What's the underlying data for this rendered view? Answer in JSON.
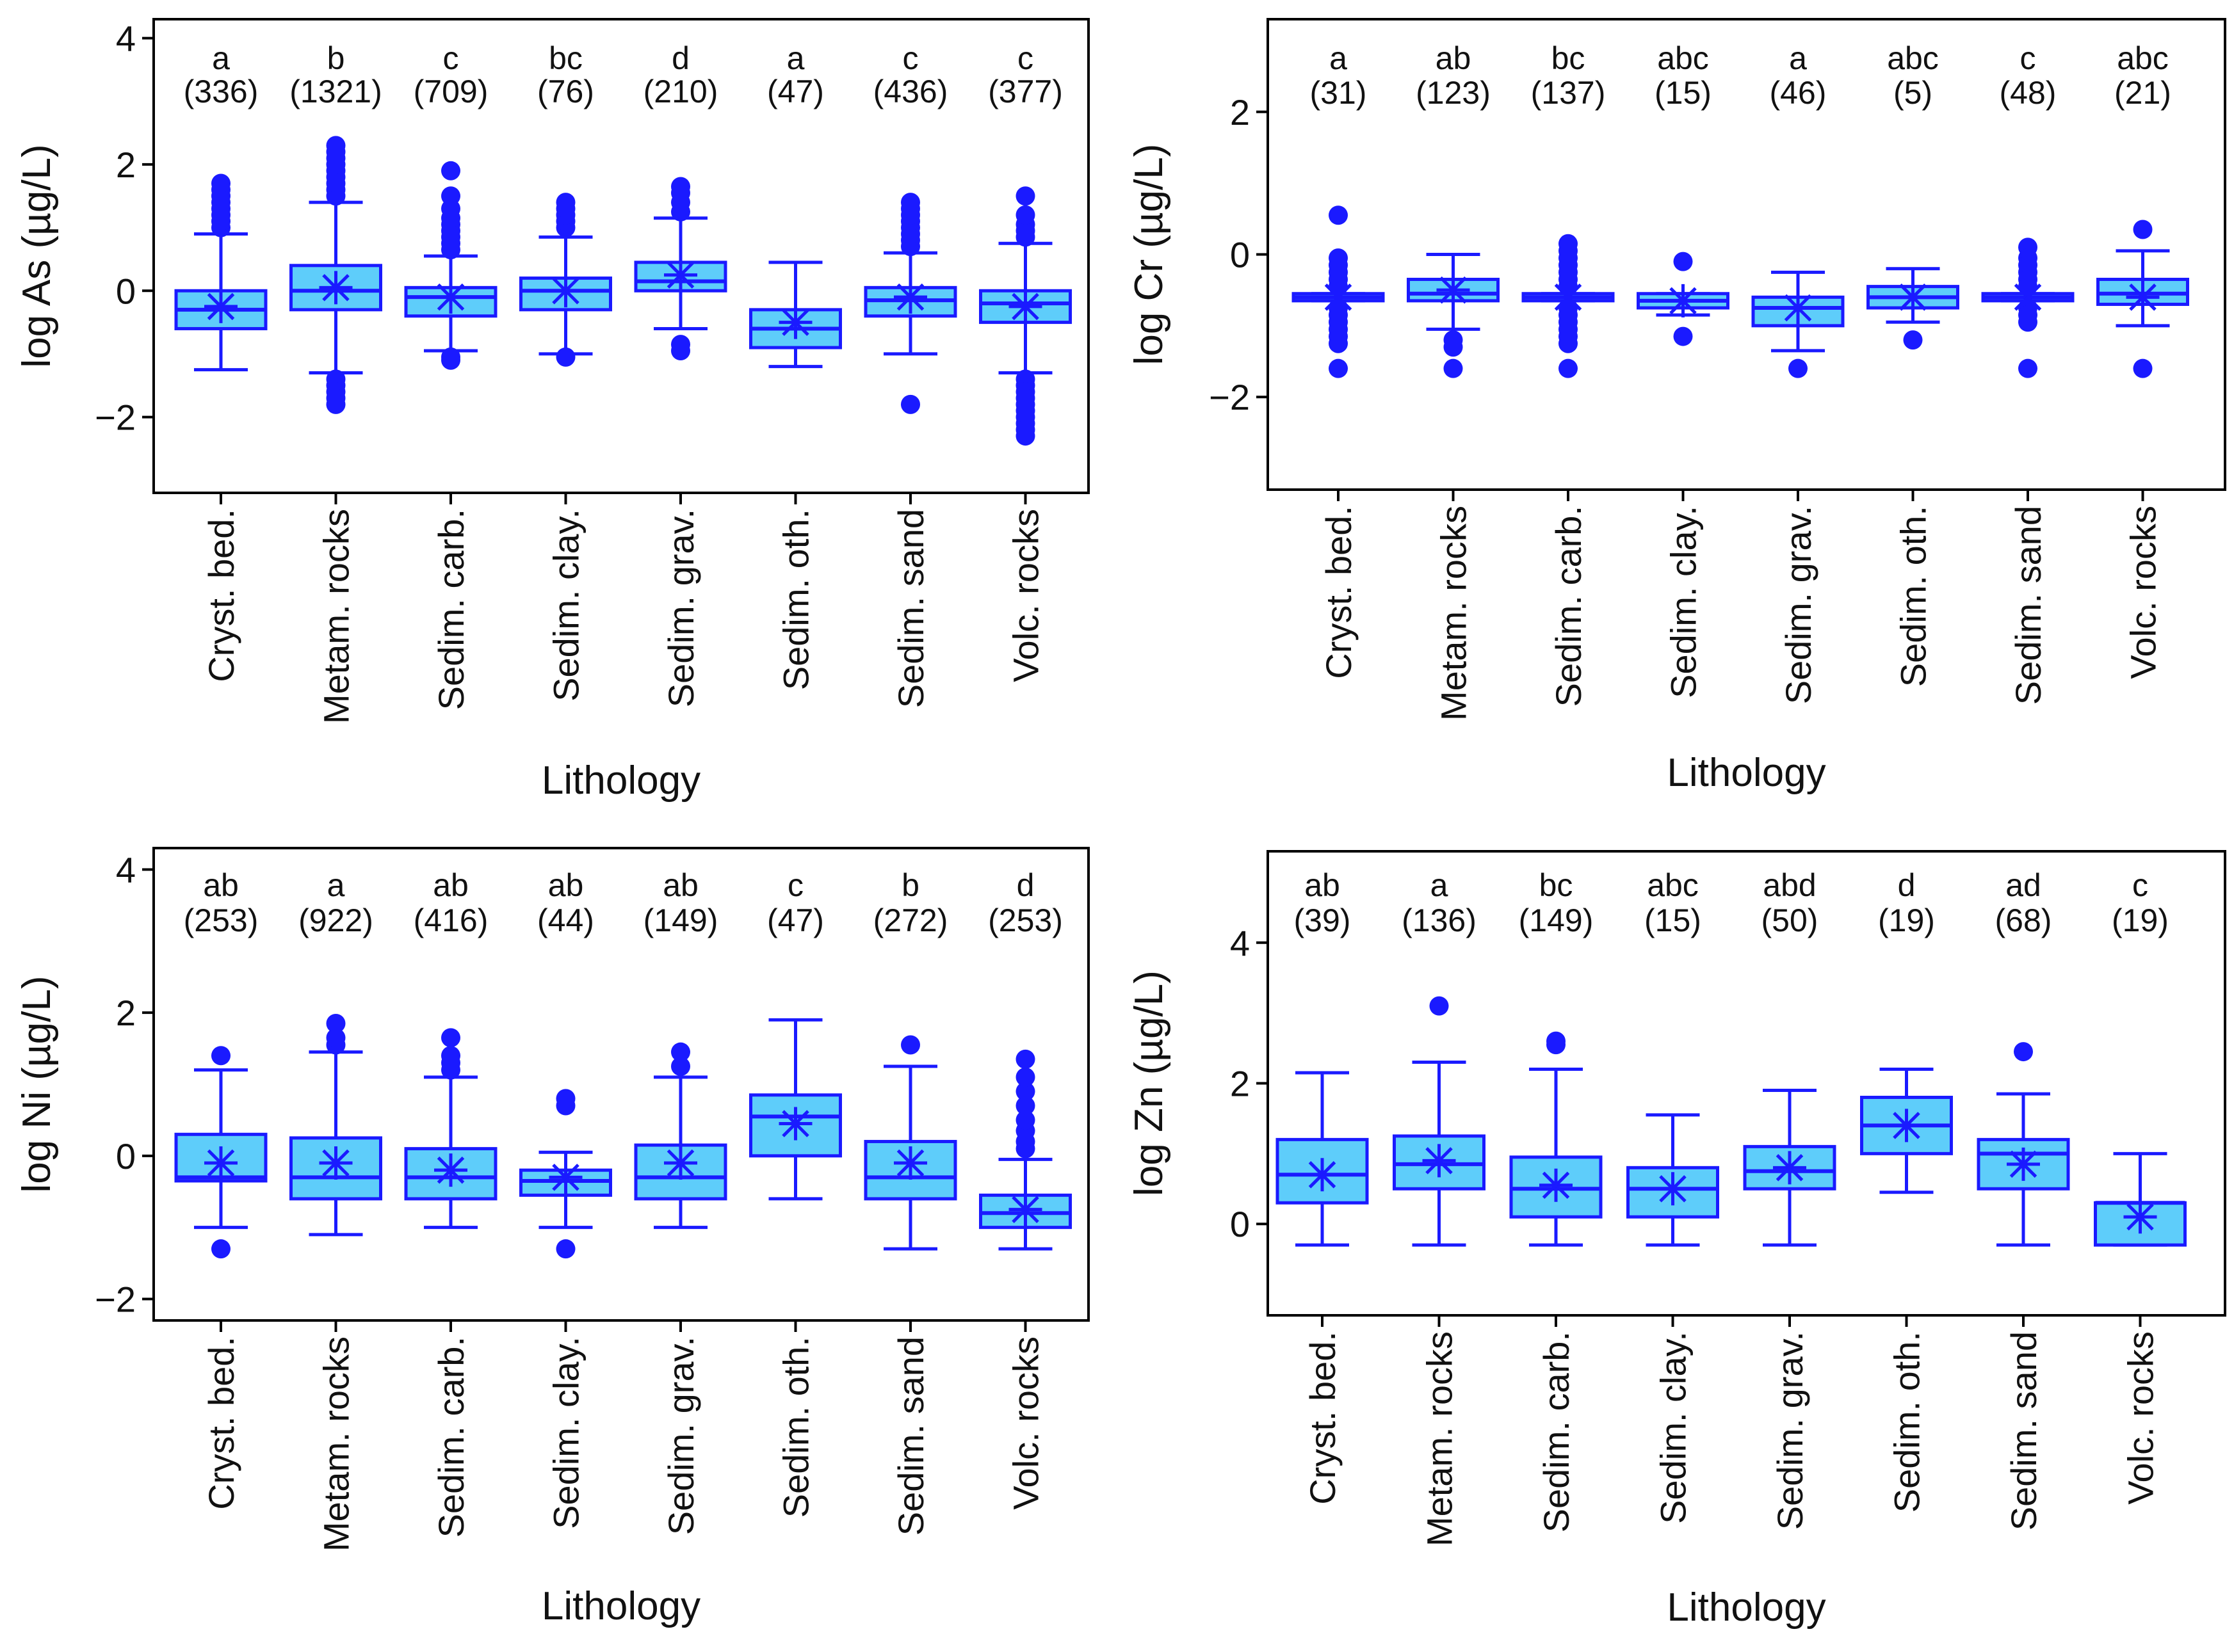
{
  "colors": {
    "stroke": "#1a1aff",
    "fill": "#5ecdfa",
    "axis": "#000000"
  },
  "chart_data": [
    {
      "type": "box",
      "element": "As",
      "ylabel_prefix": "log",
      "ylabel_element": "As",
      "ylabel_unit": "(µg/L)",
      "xlabel": "Lithology",
      "ylim": [
        -3.2,
        4.3
      ],
      "yticks": [
        4,
        2,
        0,
        -2
      ],
      "ytick_labels": [
        "4",
        "2",
        "0",
        "−2"
      ],
      "categories": [
        "Cryst. bed.",
        "Metam. rocks",
        "Sedim. carb.",
        "Sedim. clay.",
        "Sedim. grav.",
        "Sedim. oth.",
        "Sedim. sand",
        "Volc. rocks"
      ],
      "letters": [
        "a",
        "b",
        "c",
        "bc",
        "d",
        "a",
        "c",
        "c"
      ],
      "counts": [
        "(336)",
        "(1321)",
        "(709)",
        "(76)",
        "(210)",
        "(47)",
        "(436)",
        "(377)"
      ],
      "boxes": [
        {
          "wlo": -1.25,
          "q1": -0.6,
          "med": -0.3,
          "q3": 0.0,
          "whi": 0.9,
          "mean": -0.25,
          "outliers": [
            1.0,
            1.1,
            1.2,
            1.3,
            1.4,
            1.5,
            1.6,
            1.7
          ]
        },
        {
          "wlo": -1.3,
          "q1": -0.3,
          "med": 0.0,
          "q3": 0.4,
          "whi": 1.4,
          "mean": 0.05,
          "outliers": [
            1.5,
            1.6,
            1.7,
            1.8,
            1.9,
            2.0,
            2.1,
            2.2,
            2.3,
            -1.4,
            -1.5,
            -1.6,
            -1.7,
            -1.8
          ]
        },
        {
          "wlo": -0.95,
          "q1": -0.4,
          "med": -0.1,
          "q3": 0.05,
          "whi": 0.55,
          "mean": -0.1,
          "outliers": [
            0.65,
            0.75,
            0.85,
            0.95,
            1.05,
            1.15,
            1.3,
            1.5,
            1.9,
            -1.05,
            -1.1
          ]
        },
        {
          "wlo": -1.0,
          "q1": -0.3,
          "med": 0.0,
          "q3": 0.2,
          "whi": 0.85,
          "mean": 0.0,
          "outliers": [
            1.0,
            1.1,
            1.2,
            1.3,
            1.4,
            -1.05
          ]
        },
        {
          "wlo": -0.6,
          "q1": 0.0,
          "med": 0.15,
          "q3": 0.45,
          "whi": 1.15,
          "mean": 0.25,
          "outliers": [
            1.25,
            1.4,
            1.55,
            1.65,
            -0.85,
            -0.95
          ]
        },
        {
          "wlo": -1.2,
          "q1": -0.9,
          "med": -0.6,
          "q3": -0.3,
          "whi": 0.45,
          "mean": -0.5,
          "outliers": []
        },
        {
          "wlo": -1.0,
          "q1": -0.4,
          "med": -0.15,
          "q3": 0.05,
          "whi": 0.6,
          "mean": -0.1,
          "outliers": [
            0.7,
            0.8,
            0.9,
            1.0,
            1.1,
            1.2,
            1.3,
            1.4,
            -1.8
          ]
        },
        {
          "wlo": -1.3,
          "q1": -0.5,
          "med": -0.2,
          "q3": 0.0,
          "whi": 0.75,
          "mean": -0.25,
          "outliers": [
            0.85,
            0.95,
            1.05,
            1.2,
            1.5,
            -1.4,
            -1.5,
            -1.6,
            -1.7,
            -1.8,
            -1.9,
            -2.0,
            -2.1,
            -2.2,
            -2.3
          ]
        }
      ]
    },
    {
      "type": "box",
      "element": "Cr",
      "ylabel_prefix": "log",
      "ylabel_element": "Cr",
      "ylabel_unit": "(µg/L)",
      "xlabel": "Lithology",
      "ylim": [
        -3.3,
        3.3
      ],
      "yticks": [
        2,
        0,
        -2
      ],
      "ytick_labels": [
        "2",
        "0",
        "−2"
      ],
      "categories": [
        "Cryst. bed.",
        "Metam. rocks",
        "Sedim. carb.",
        "Sedim. clay.",
        "Sedim. grav.",
        "Sedim. oth.",
        "Sedim. sand",
        "Volc. rocks"
      ],
      "letters": [
        "a",
        "ab",
        "bc",
        "abc",
        "a",
        "abc",
        "c",
        "abc"
      ],
      "counts": [
        "(31)",
        "(123)",
        "(137)",
        "(15)",
        "(46)",
        "(5)",
        "(48)",
        "(21)"
      ],
      "boxes": [
        {
          "wlo": -0.65,
          "q1": -0.65,
          "med": -0.6,
          "q3": -0.55,
          "whi": -0.55,
          "mean": -0.6,
          "outliers": [
            0.55,
            -0.05,
            -0.15,
            -0.25,
            -0.35,
            -0.45,
            -0.75,
            -0.85,
            -0.95,
            -1.05,
            -1.15,
            -1.25,
            -1.6
          ]
        },
        {
          "wlo": -1.05,
          "q1": -0.65,
          "med": -0.55,
          "q3": -0.35,
          "whi": 0.0,
          "mean": -0.5,
          "outliers": [
            -1.2,
            -1.3,
            -1.6
          ]
        },
        {
          "wlo": -0.65,
          "q1": -0.65,
          "med": -0.6,
          "q3": -0.55,
          "whi": -0.55,
          "mean": -0.6,
          "outliers": [
            0.15,
            0.05,
            -0.05,
            -0.15,
            -0.25,
            -0.35,
            -0.45,
            -0.75,
            -0.85,
            -0.95,
            -1.05,
            -1.15,
            -1.25,
            -1.6
          ]
        },
        {
          "wlo": -0.85,
          "q1": -0.75,
          "med": -0.65,
          "q3": -0.55,
          "whi": -0.55,
          "mean": -0.65,
          "outliers": [
            -0.1,
            -1.15
          ]
        },
        {
          "wlo": -1.35,
          "q1": -1.0,
          "med": -0.75,
          "q3": -0.6,
          "whi": -0.25,
          "mean": -0.75,
          "outliers": [
            -1.6
          ]
        },
        {
          "wlo": -0.95,
          "q1": -0.75,
          "med": -0.6,
          "q3": -0.45,
          "whi": -0.2,
          "mean": -0.6,
          "outliers": [
            -1.2
          ]
        },
        {
          "wlo": -0.65,
          "q1": -0.65,
          "med": -0.6,
          "q3": -0.55,
          "whi": -0.55,
          "mean": -0.6,
          "outliers": [
            0.1,
            -0.05,
            -0.15,
            -0.25,
            -0.35,
            -0.45,
            -0.75,
            -0.85,
            -0.95,
            -1.6
          ]
        },
        {
          "wlo": -1.0,
          "q1": -0.7,
          "med": -0.55,
          "q3": -0.35,
          "whi": 0.05,
          "mean": -0.6,
          "outliers": [
            0.35,
            -1.6
          ]
        }
      ]
    },
    {
      "type": "box",
      "element": "Ni",
      "ylabel_prefix": "log",
      "ylabel_element": "Ni",
      "ylabel_unit": "(µg/L)",
      "xlabel": "Lithology",
      "ylim": [
        -2.3,
        4.3
      ],
      "yticks": [
        4,
        2,
        0,
        -2
      ],
      "ytick_labels": [
        "4",
        "2",
        "0",
        "−2"
      ],
      "categories": [
        "Cryst. bed.",
        "Metam. rocks",
        "Sedim. carb.",
        "Sedim. clay.",
        "Sedim. grav.",
        "Sedim. oth.",
        "Sedim. sand",
        "Volc. rocks"
      ],
      "letters": [
        "ab",
        "a",
        "ab",
        "ab",
        "ab",
        "c",
        "b",
        "d"
      ],
      "counts": [
        "(253)",
        "(922)",
        "(416)",
        "(44)",
        "(149)",
        "(47)",
        "(272)",
        "(253)"
      ],
      "boxes": [
        {
          "wlo": -1.0,
          "q1": -0.35,
          "med": -0.3,
          "q3": 0.3,
          "whi": 1.2,
          "mean": -0.1,
          "outliers": [
            1.4,
            -1.3
          ]
        },
        {
          "wlo": -1.1,
          "q1": -0.6,
          "med": -0.3,
          "q3": 0.25,
          "whi": 1.45,
          "mean": -0.1,
          "outliers": [
            1.55,
            1.65,
            1.85
          ]
        },
        {
          "wlo": -1.0,
          "q1": -0.6,
          "med": -0.3,
          "q3": 0.1,
          "whi": 1.1,
          "mean": -0.2,
          "outliers": [
            1.2,
            1.3,
            1.4,
            1.65
          ]
        },
        {
          "wlo": -1.0,
          "q1": -0.55,
          "med": -0.35,
          "q3": -0.2,
          "whi": 0.05,
          "mean": -0.3,
          "outliers": [
            0.7,
            0.8,
            -1.3
          ]
        },
        {
          "wlo": -1.0,
          "q1": -0.6,
          "med": -0.3,
          "q3": 0.15,
          "whi": 1.1,
          "mean": -0.1,
          "outliers": [
            1.25,
            1.45
          ]
        },
        {
          "wlo": -0.6,
          "q1": 0.0,
          "med": 0.55,
          "q3": 0.85,
          "whi": 1.9,
          "mean": 0.45,
          "outliers": []
        },
        {
          "wlo": -1.3,
          "q1": -0.6,
          "med": -0.3,
          "q3": 0.2,
          "whi": 1.25,
          "mean": -0.1,
          "outliers": [
            1.55
          ]
        },
        {
          "wlo": -1.3,
          "q1": -1.0,
          "med": -0.8,
          "q3": -0.55,
          "whi": -0.05,
          "mean": -0.75,
          "outliers": [
            0.1,
            0.2,
            0.35,
            0.5,
            0.7,
            0.9,
            1.1,
            1.35
          ]
        }
      ]
    },
    {
      "type": "box",
      "element": "Zn",
      "ylabel_prefix": "log",
      "ylabel_element": "Zn",
      "ylabel_unit": "(µg/L)",
      "xlabel": "Lithology",
      "ylim": [
        -1.3,
        5.3
      ],
      "yticks": [
        4,
        2,
        0
      ],
      "ytick_labels": [
        "4",
        "2",
        "0"
      ],
      "categories": [
        "Cryst. bed.",
        "Metam. rocks",
        "Sedim. carb.",
        "Sedim. clay.",
        "Sedim. grav.",
        "Sedim. oth.",
        "Sedim. sand",
        "Volc. rocks"
      ],
      "letters": [
        "ab",
        "a",
        "bc",
        "abc",
        "abd",
        "d",
        "ad",
        "c"
      ],
      "counts": [
        "(39)",
        "(136)",
        "(149)",
        "(15)",
        "(50)",
        "(19)",
        "(68)",
        "(19)"
      ],
      "boxes": [
        {
          "wlo": -0.3,
          "q1": 0.3,
          "med": 0.7,
          "q3": 1.2,
          "whi": 2.15,
          "mean": 0.7,
          "outliers": []
        },
        {
          "wlo": -0.3,
          "q1": 0.5,
          "med": 0.85,
          "q3": 1.25,
          "whi": 2.3,
          "mean": 0.9,
          "outliers": [
            3.1
          ]
        },
        {
          "wlo": -0.3,
          "q1": 0.1,
          "med": 0.5,
          "q3": 0.95,
          "whi": 2.2,
          "mean": 0.55,
          "outliers": [
            2.55,
            2.6
          ]
        },
        {
          "wlo": -0.3,
          "q1": 0.1,
          "med": 0.5,
          "q3": 0.8,
          "whi": 1.55,
          "mean": 0.5,
          "outliers": []
        },
        {
          "wlo": -0.3,
          "q1": 0.5,
          "med": 0.75,
          "q3": 1.1,
          "whi": 1.9,
          "mean": 0.8,
          "outliers": []
        },
        {
          "wlo": 0.45,
          "q1": 1.0,
          "med": 1.4,
          "q3": 1.8,
          "whi": 2.2,
          "mean": 1.4,
          "outliers": []
        },
        {
          "wlo": -0.3,
          "q1": 0.5,
          "med": 1.0,
          "q3": 1.2,
          "whi": 1.85,
          "mean": 0.85,
          "outliers": [
            2.45
          ]
        },
        {
          "wlo": -0.3,
          "q1": -0.3,
          "med": 0.3,
          "q3": 0.3,
          "whi": 1.0,
          "mean": 0.1,
          "outliers": []
        }
      ]
    }
  ]
}
